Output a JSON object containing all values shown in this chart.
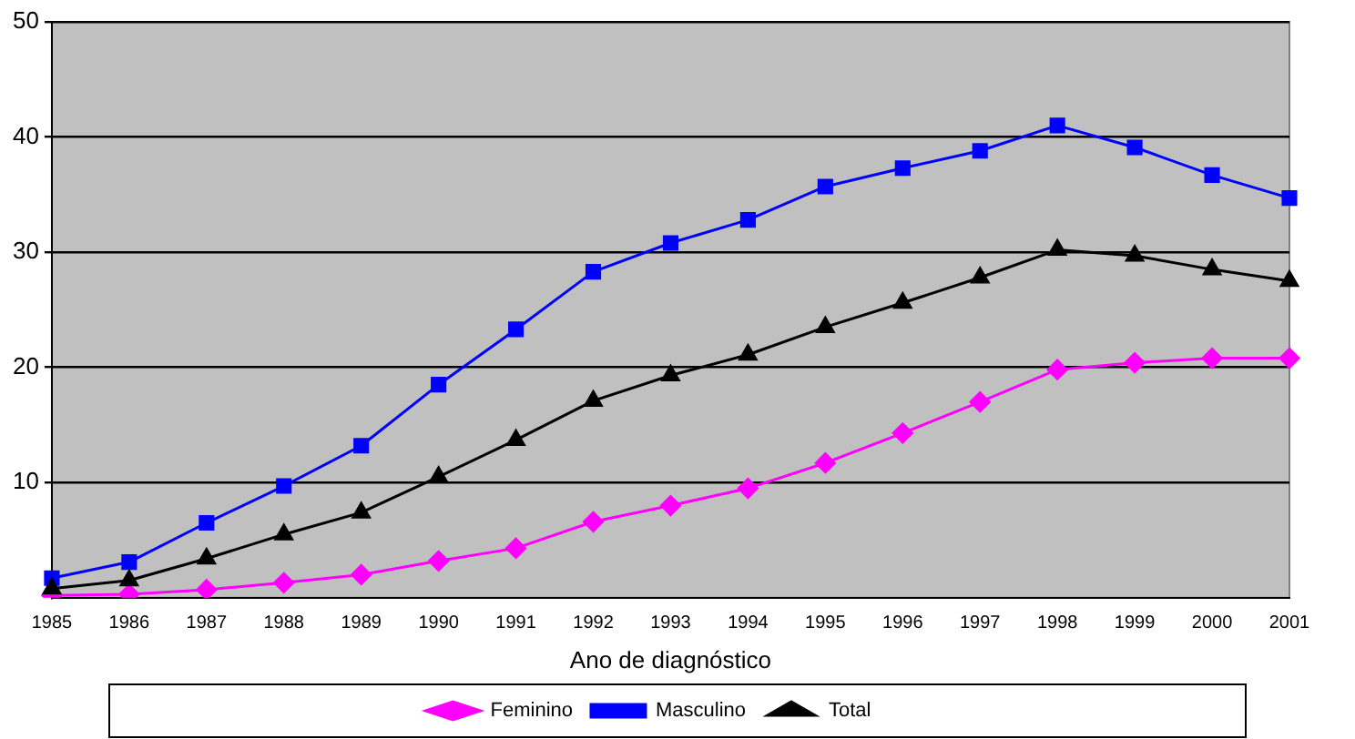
{
  "chart_data": {
    "type": "line",
    "xlabel": "Ano de diagnóstico",
    "categories": [
      "1985",
      "1986",
      "1987",
      "1988",
      "1989",
      "1990",
      "1991",
      "1992",
      "1993",
      "1994",
      "1995",
      "1996",
      "1997",
      "1998",
      "1999",
      "2000",
      "2001"
    ],
    "series": [
      {
        "name": "Feminino",
        "color": "#ff00ff",
        "marker": "diamond",
        "values": [
          0.2,
          0.3,
          0.7,
          1.3,
          2.0,
          3.2,
          4.3,
          6.6,
          8.0,
          9.5,
          11.7,
          14.3,
          17.0,
          19.8,
          20.4,
          20.8,
          20.8
        ]
      },
      {
        "name": "Masculino",
        "color": "#0000ff",
        "marker": "square",
        "values": [
          1.7,
          3.1,
          6.5,
          9.7,
          13.2,
          18.5,
          23.3,
          28.3,
          30.8,
          32.8,
          35.7,
          37.3,
          38.8,
          41.0,
          39.1,
          36.7,
          34.7
        ]
      },
      {
        "name": "Total",
        "color": "#000000",
        "marker": "triangle",
        "values": [
          0.8,
          1.5,
          3.4,
          5.5,
          7.4,
          10.5,
          13.7,
          17.1,
          19.3,
          21.1,
          23.5,
          25.6,
          27.8,
          30.2,
          29.7,
          28.5,
          27.5
        ]
      }
    ],
    "ylim": [
      0,
      50
    ],
    "yticks": [
      10,
      20,
      30,
      40,
      50
    ],
    "grid": "y",
    "legend": "bottom",
    "line_style": "solid"
  }
}
